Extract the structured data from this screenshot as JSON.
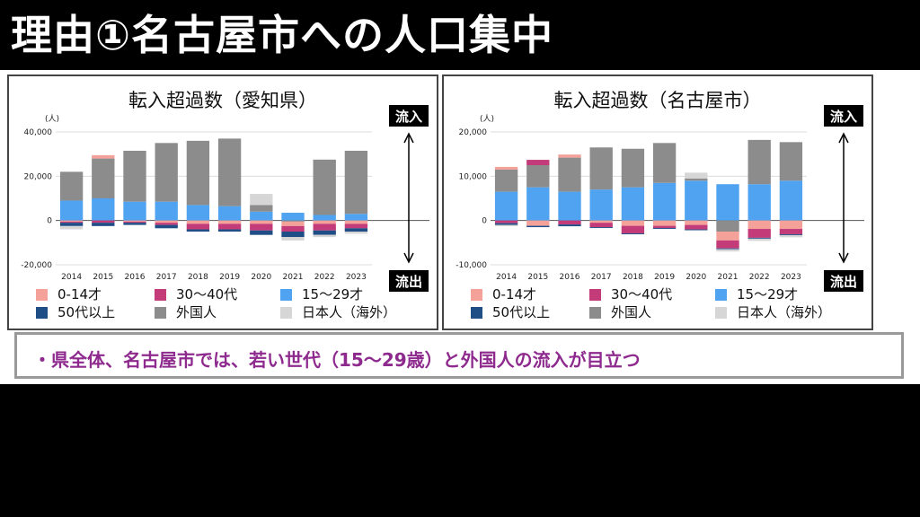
{
  "title": "理由①名古屋市への人口集中",
  "note": "・県全体、名古屋市では、若い世代（15〜29歳）と外国人の流入が目立つ",
  "legend": [
    {
      "key": "age_0_14",
      "label": "0-14才",
      "color": "#f4a19a"
    },
    {
      "key": "age_30_40",
      "label": "30〜40代",
      "color": "#c33b78"
    },
    {
      "key": "age_15_29",
      "label": "15〜29才",
      "color": "#4fa3f0"
    },
    {
      "key": "age_50plus",
      "label": "50代以上",
      "color": "#1f4e86"
    },
    {
      "key": "foreign",
      "label": "外国人",
      "color": "#8c8c8c"
    },
    {
      "key": "japanese_abroad",
      "label": "日本人（海外）",
      "color": "#d6d6d6"
    }
  ],
  "arrows": {
    "in_label": "流入",
    "out_label": "流出"
  },
  "chart_data": [
    {
      "type": "bar",
      "stacked": true,
      "title": "転入超過数（愛知県）",
      "unit_label": "(人)",
      "categories": [
        "2014",
        "2015",
        "2016",
        "2017",
        "2018",
        "2019",
        "2020",
        "2021",
        "2022",
        "2023"
      ],
      "ylim": [
        -20000,
        40000
      ],
      "yticks": [
        -20000,
        0,
        20000,
        40000
      ],
      "ytick_labels": [
        "-20,000",
        "0",
        "20,000",
        "40,000"
      ],
      "series": [
        {
          "key": "age_15_29",
          "name": "15〜29才",
          "values": [
            9000,
            10000,
            8500,
            8500,
            7000,
            6500,
            4000,
            3500,
            2500,
            3000
          ]
        },
        {
          "key": "foreign",
          "name": "外国人",
          "values": [
            13000,
            18000,
            23000,
            26500,
            29000,
            30500,
            3000,
            -500,
            25000,
            28500
          ]
        },
        {
          "key": "japanese_abroad",
          "name": "日本人（海外）",
          "values": [
            0,
            0,
            0,
            0,
            0,
            0,
            5000,
            0,
            0,
            0
          ]
        },
        {
          "key": "age_0_14",
          "name": "0-14才",
          "values": [
            -500,
            1500,
            -500,
            -1000,
            -1500,
            -1500,
            -1500,
            -2000,
            -1500,
            -1500
          ]
        },
        {
          "key": "age_30_40",
          "name": "30〜40代",
          "values": [
            -500,
            -1000,
            -500,
            -1000,
            -2500,
            -2500,
            -3000,
            -2500,
            -3000,
            -2000
          ]
        },
        {
          "key": "age_50plus",
          "name": "50代以上",
          "values": [
            -1500,
            -1500,
            -1000,
            -1500,
            -1000,
            -1000,
            -2000,
            -2500,
            -2000,
            -1500
          ]
        },
        {
          "key": "japanese_abroad_out",
          "name": "日本人（海外）",
          "values": [
            -1500,
            0,
            0,
            0,
            0,
            0,
            0,
            -1500,
            -1000,
            -1000
          ]
        }
      ]
    },
    {
      "type": "bar",
      "stacked": true,
      "title": "転入超過数（名古屋市）",
      "unit_label": "(人)",
      "categories": [
        "2014",
        "2015",
        "2016",
        "2017",
        "2018",
        "2019",
        "2020",
        "2021",
        "2022",
        "2023"
      ],
      "ylim": [
        -10000,
        20000
      ],
      "yticks": [
        -10000,
        0,
        10000,
        20000
      ],
      "ytick_labels": [
        "-10,000",
        "0",
        "10,000",
        "20,000"
      ],
      "series": [
        {
          "key": "age_15_29",
          "name": "15〜29才",
          "values": [
            6500,
            7500,
            6500,
            7000,
            7500,
            8500,
            9000,
            8200,
            8200,
            9000
          ]
        },
        {
          "key": "foreign",
          "name": "外国人",
          "values": [
            5000,
            5000,
            7700,
            9500,
            8700,
            9000,
            500,
            -2500,
            10000,
            8700
          ]
        },
        {
          "key": "japanese_abroad",
          "name": "日本人（海外）",
          "values": [
            0,
            0,
            0,
            0,
            0,
            0,
            1300,
            0,
            0,
            0
          ]
        },
        {
          "key": "age_0_14",
          "name": "0-14才",
          "values": [
            600,
            -1200,
            700,
            -500,
            -1200,
            -1200,
            -1000,
            -2000,
            -1900,
            -1900
          ]
        },
        {
          "key": "age_30_40",
          "name": "30〜40代",
          "values": [
            -600,
            1200,
            -900,
            -1000,
            -1700,
            -500,
            -1000,
            -1800,
            -2000,
            -1200
          ]
        },
        {
          "key": "age_50plus",
          "name": "50代以上",
          "values": [
            -400,
            -300,
            -400,
            -200,
            -200,
            -200,
            -200,
            -200,
            -200,
            -200
          ]
        },
        {
          "key": "japanese_abroad_out",
          "name": "日本人（海外）",
          "values": [
            -300,
            0,
            0,
            0,
            0,
            0,
            0,
            -500,
            -500,
            -500
          ]
        }
      ]
    }
  ]
}
